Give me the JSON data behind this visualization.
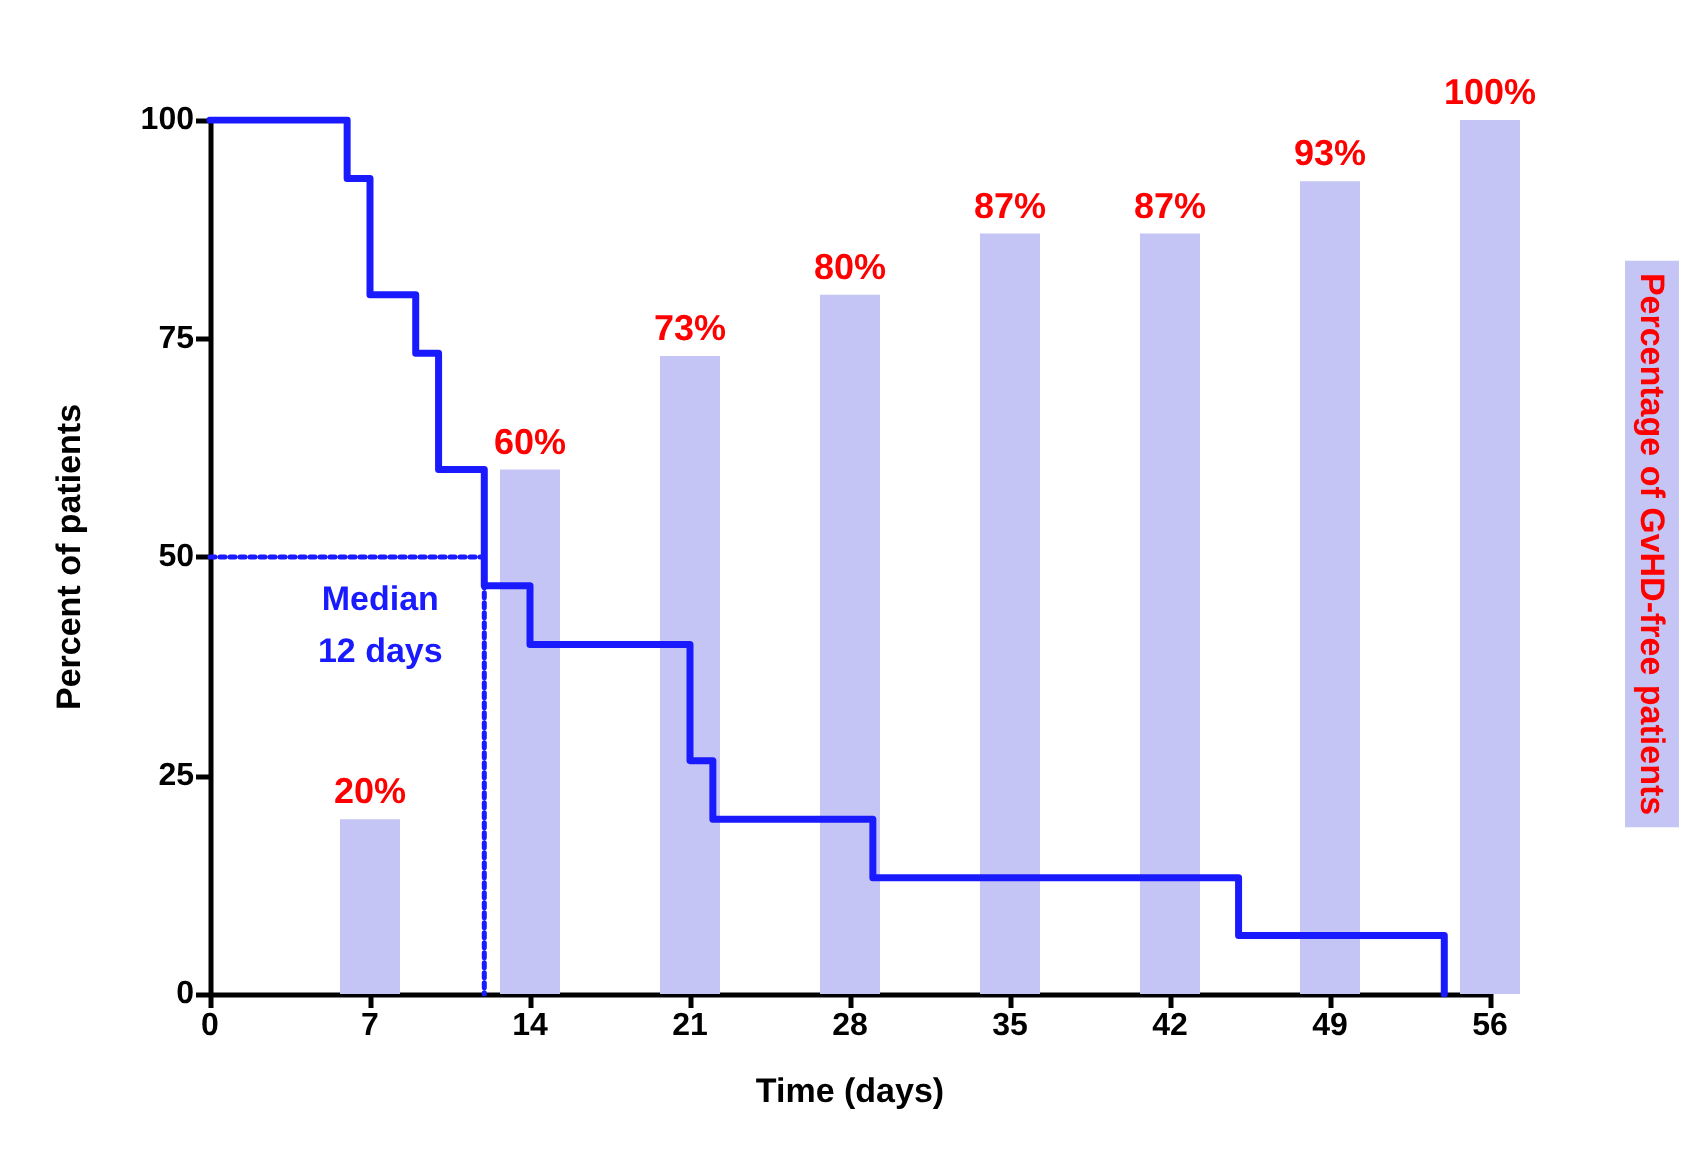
{
  "chart_data": {
    "type": "step",
    "xlabel": "Time (days)",
    "ylabel": "Percent of patients",
    "y2label": "Percentage of GvHD-free patients",
    "xlim": [
      0,
      56
    ],
    "xticks": [
      0,
      7,
      14,
      21,
      28,
      35,
      42,
      49,
      56
    ],
    "ylim": [
      0,
      100
    ],
    "yticks": [
      0,
      25,
      50,
      75,
      100
    ],
    "series": [
      {
        "type": "bar",
        "color": "#c4c4f5",
        "x": [
          7,
          14,
          21,
          28,
          35,
          42,
          49,
          56
        ],
        "values": [
          20,
          60,
          73,
          80,
          87,
          87,
          93,
          100
        ],
        "value_labels": [
          "20%",
          "60%",
          "73%",
          "80%",
          "87%",
          "87%",
          "93%",
          "100%"
        ]
      },
      {
        "color": "#1a1aff",
        "x": [
          0,
          6,
          7,
          9,
          10,
          12,
          14,
          21,
          22,
          29,
          45,
          54
        ],
        "values": [
          100,
          93.3,
          80,
          73.3,
          60,
          46.7,
          40,
          26.7,
          20,
          13.3,
          6.7,
          0
        ]
      },
      {
        "type": "line",
        "color": "#1a1aff",
        "line_style": "dotted",
        "x": [
          0,
          12,
          12
        ],
        "values": [
          50,
          50,
          0
        ]
      }
    ],
    "annotations": [
      {
        "text": "Median\n12 days",
        "x": 12,
        "y": 50
      }
    ],
    "marker": "none",
    "grid": false
  }
}
